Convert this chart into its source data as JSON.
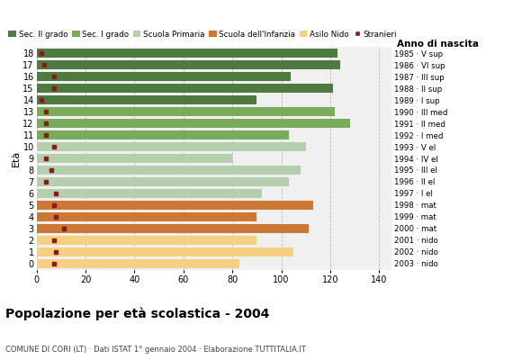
{
  "title": "Popolazione per età scolastica - 2004",
  "subtitle": "COMUNE DI CORI (LT) · Dati ISTAT 1° gennaio 2004 · Elaborazione TUTTITALIA.IT",
  "ylabel": "Età",
  "xlabel_right": "Anno di nascita",
  "xticks": [
    0,
    20,
    40,
    60,
    80,
    100,
    120,
    140
  ],
  "ages": [
    18,
    17,
    16,
    15,
    14,
    13,
    12,
    11,
    10,
    9,
    8,
    7,
    6,
    5,
    4,
    3,
    2,
    1,
    0
  ],
  "years": [
    "1985 · V sup",
    "1986 · VI sup",
    "1987 · III sup",
    "1988 · II sup",
    "1989 · I sup",
    "1990 · III med",
    "1991 · II med",
    "1992 · I med",
    "1993 · V el",
    "1994 · IV el",
    "1995 · III el",
    "1996 · II el",
    "1997 · I el",
    "1998 · mat",
    "1999 · mat",
    "2000 · mat",
    "2001 · nido",
    "2002 · nido",
    "2003 · nido"
  ],
  "bar_values": [
    123,
    124,
    104,
    121,
    90,
    122,
    128,
    103,
    110,
    80,
    108,
    103,
    92,
    113,
    90,
    111,
    90,
    105,
    83
  ],
  "bar_colors": [
    "#4e7a40",
    "#4e7a40",
    "#4e7a40",
    "#4e7a40",
    "#4e7a40",
    "#7aab5c",
    "#7aab5c",
    "#7aab5c",
    "#b5cfac",
    "#b5cfac",
    "#b5cfac",
    "#b5cfac",
    "#b5cfac",
    "#cc7733",
    "#cc7733",
    "#cc7733",
    "#f5d080",
    "#f5d080",
    "#f5d080"
  ],
  "stranieri_values": [
    2,
    3,
    7,
    7,
    2,
    4,
    4,
    4,
    7,
    4,
    6,
    4,
    8,
    7,
    8,
    11,
    7,
    8,
    7
  ],
  "stranieri_color": "#8b1a1a",
  "legend_labels": [
    "Sec. II grado",
    "Sec. I grado",
    "Scuola Primaria",
    "Scuola dell'Infanzia",
    "Asilo Nido",
    "Stranieri"
  ],
  "legend_colors": [
    "#4e7a40",
    "#7aab5c",
    "#b5cfac",
    "#cc7733",
    "#f5d080",
    "#8b1a1a"
  ],
  "bg_color": "#f0f0f0",
  "grid_color": "#bbbbbb"
}
